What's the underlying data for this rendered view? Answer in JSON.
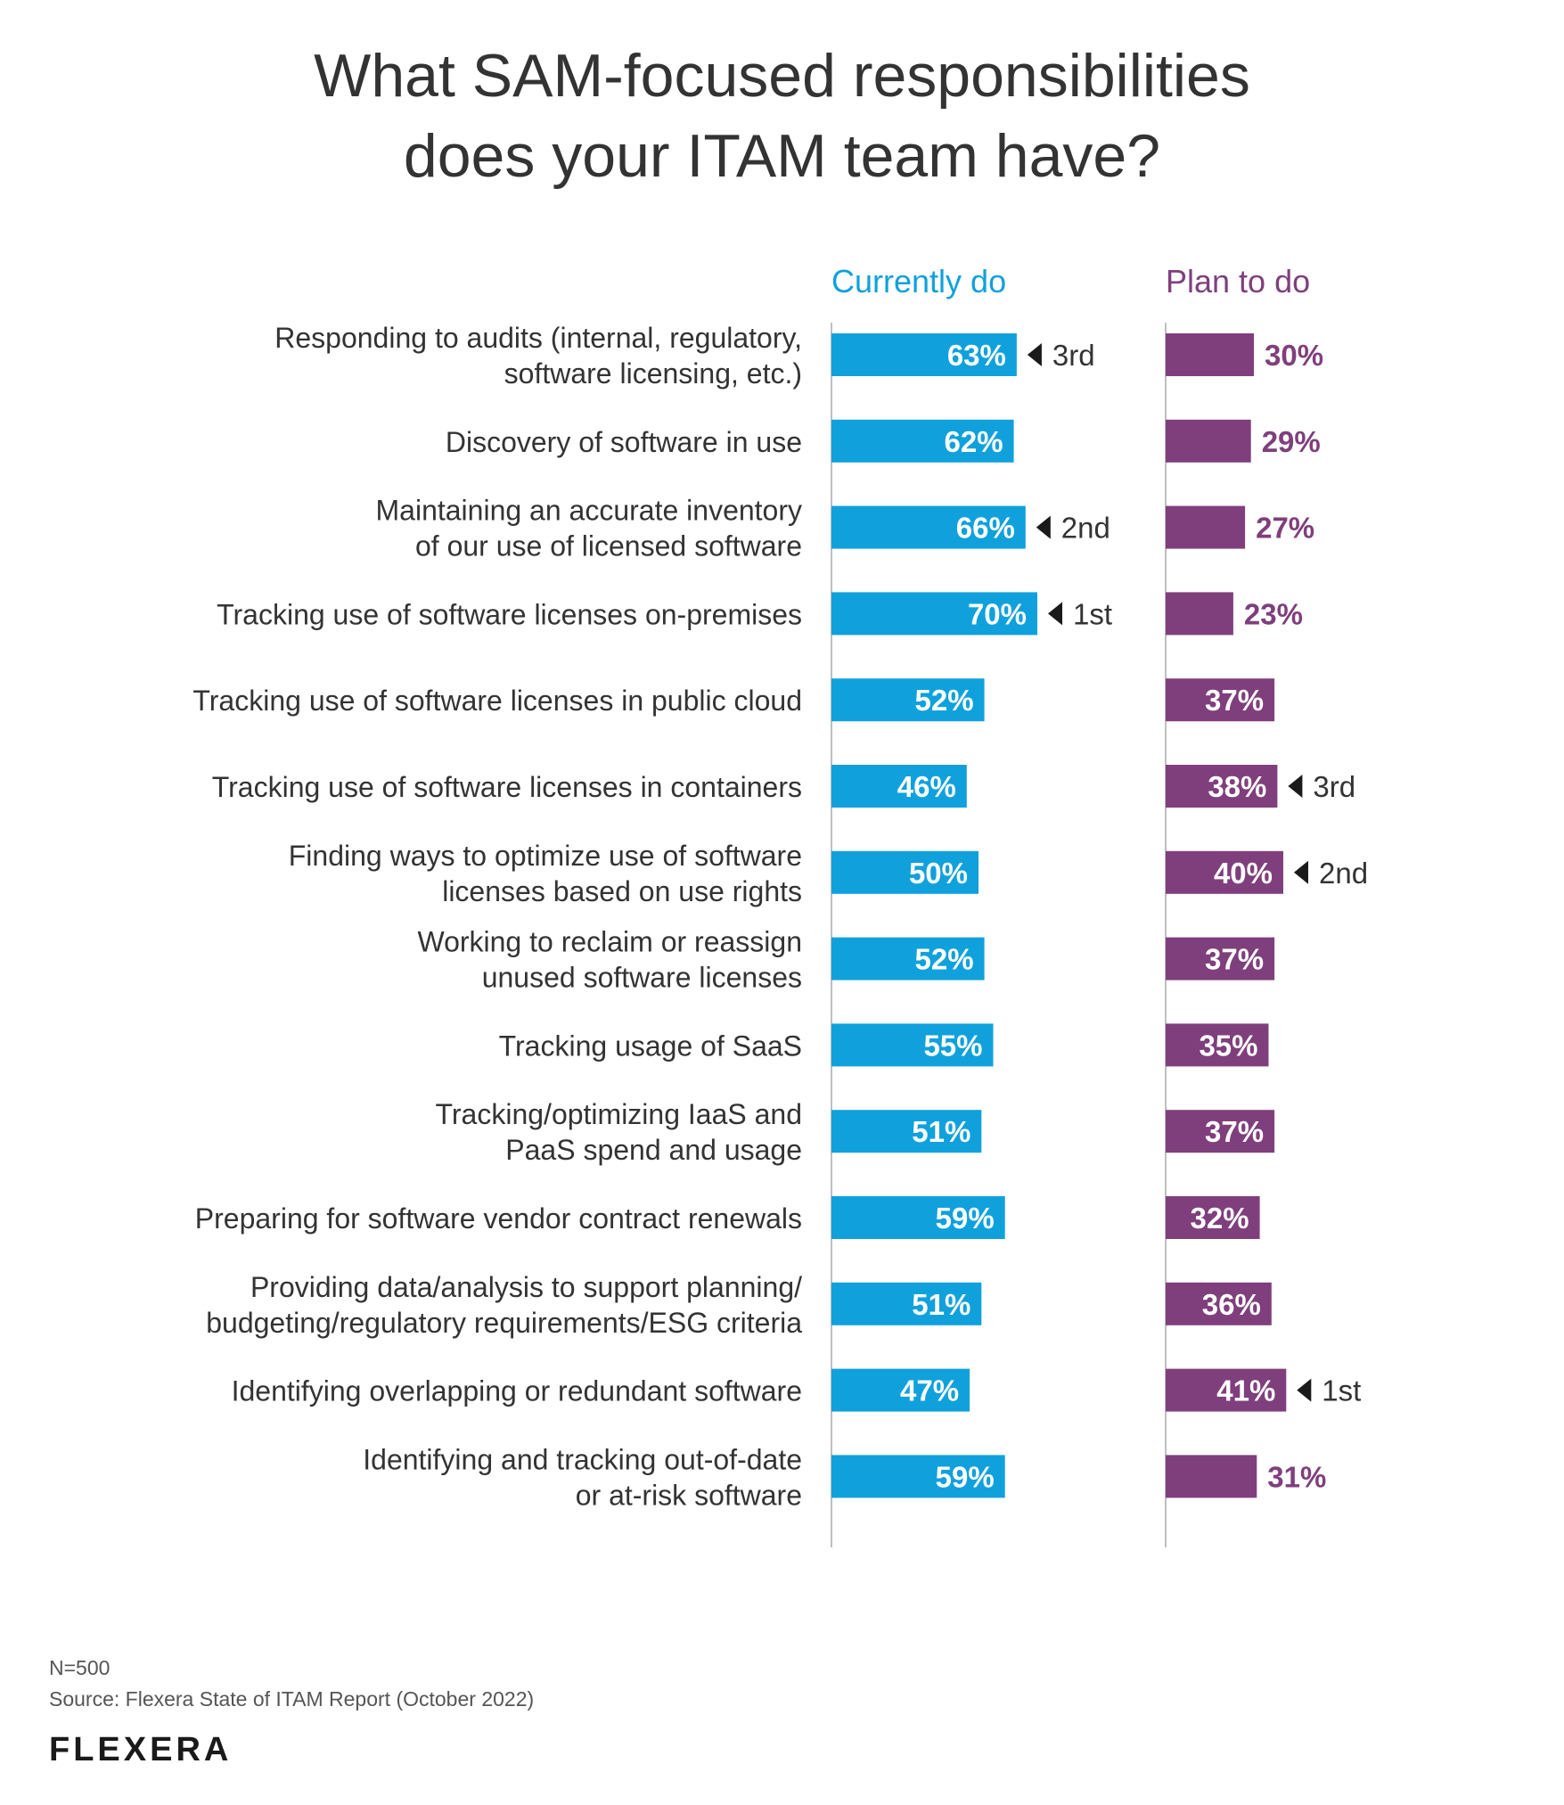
{
  "title_lines": [
    "What SAM-focused responsibilities",
    "does your ITAM team have?"
  ],
  "colors": {
    "current": "#10a1dc",
    "plan": "#7f3f7c",
    "text": "#333333",
    "axis": "#aaaaaa"
  },
  "footer": {
    "n": "N=500",
    "source": "Source: Flexera State of ITAM Report (October 2022)",
    "logo": "FLEXERA"
  },
  "chart_data": {
    "type": "bar",
    "orientation": "horizontal",
    "title": "What SAM-focused responsibilities does your ITAM team have?",
    "value_unit": "%",
    "xlim": [
      0,
      100
    ],
    "categories": [
      [
        "Responding to audits (internal, regulatory,",
        "software licensing, etc.)"
      ],
      [
        "Discovery of software in use"
      ],
      [
        "Maintaining an accurate inventory",
        "of our use of licensed software"
      ],
      [
        "Tracking use of software licenses on-premises"
      ],
      [
        "Tracking use of software licenses in public cloud"
      ],
      [
        "Tracking use of software licenses in containers"
      ],
      [
        "Finding ways to optimize use of software",
        "licenses based on use rights"
      ],
      [
        "Working to reclaim or reassign",
        "unused software licenses"
      ],
      [
        "Tracking usage of SaaS"
      ],
      [
        "Tracking/optimizing IaaS and",
        "PaaS spend and usage"
      ],
      [
        "Preparing for software vendor contract renewals"
      ],
      [
        "Providing data/analysis to support planning/",
        "budgeting/regulatory requirements/ESG criteria"
      ],
      [
        "Identifying overlapping or redundant software"
      ],
      [
        "Identifying and tracking out-of-date",
        "or at-risk software"
      ]
    ],
    "series": [
      {
        "name": "Currently do",
        "values": [
          63,
          62,
          66,
          70,
          52,
          46,
          50,
          52,
          55,
          51,
          59,
          51,
          47,
          59
        ],
        "ranks": [
          {
            "index": 3,
            "label": "1st"
          },
          {
            "index": 2,
            "label": "2nd"
          },
          {
            "index": 0,
            "label": "3rd"
          }
        ]
      },
      {
        "name": "Plan to do",
        "values": [
          30,
          29,
          27,
          23,
          37,
          38,
          40,
          37,
          35,
          37,
          32,
          36,
          41,
          31
        ],
        "ranks": [
          {
            "index": 12,
            "label": "1st"
          },
          {
            "index": 6,
            "label": "2nd"
          },
          {
            "index": 5,
            "label": "3rd"
          }
        ]
      }
    ]
  }
}
